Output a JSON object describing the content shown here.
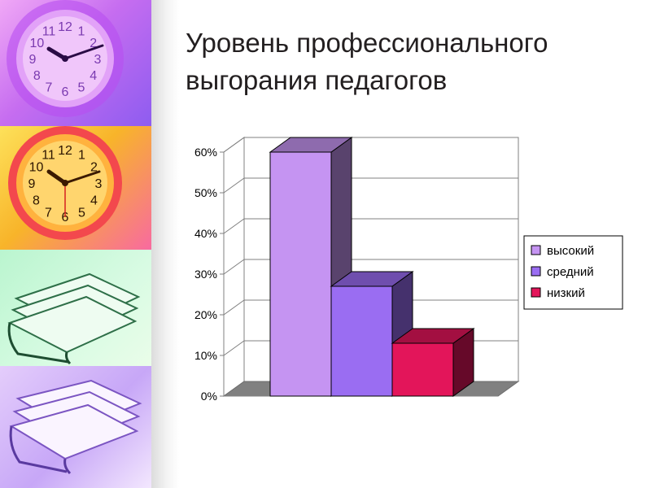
{
  "title_lines": [
    "Уровень профессионального",
    "выгорания педагогов"
  ],
  "chart_data": {
    "type": "bar",
    "title": "Уровень профессионального выгорания педагогов",
    "categories": [
      "высокий",
      "средний",
      "низкий"
    ],
    "values": [
      0.6,
      0.27,
      0.13
    ],
    "ylim": [
      0,
      0.6
    ],
    "y_ticks": [
      "0%",
      "10%",
      "20%",
      "30%",
      "40%",
      "50%",
      "60%"
    ],
    "grid": true,
    "legend_position": "right",
    "colors": {
      "высокий": "#c594f2",
      "средний": "#9a6df2",
      "низкий": "#e3155a"
    }
  },
  "decor": {
    "left_panel_icons": [
      "wall-clock-icon",
      "wall-clock-icon",
      "paper-stack-icon",
      "paper-stack-icon"
    ],
    "clock_numbers": [
      "12",
      "1",
      "2",
      "3",
      "4",
      "5",
      "6",
      "7",
      "8",
      "9",
      "10",
      "11"
    ]
  }
}
